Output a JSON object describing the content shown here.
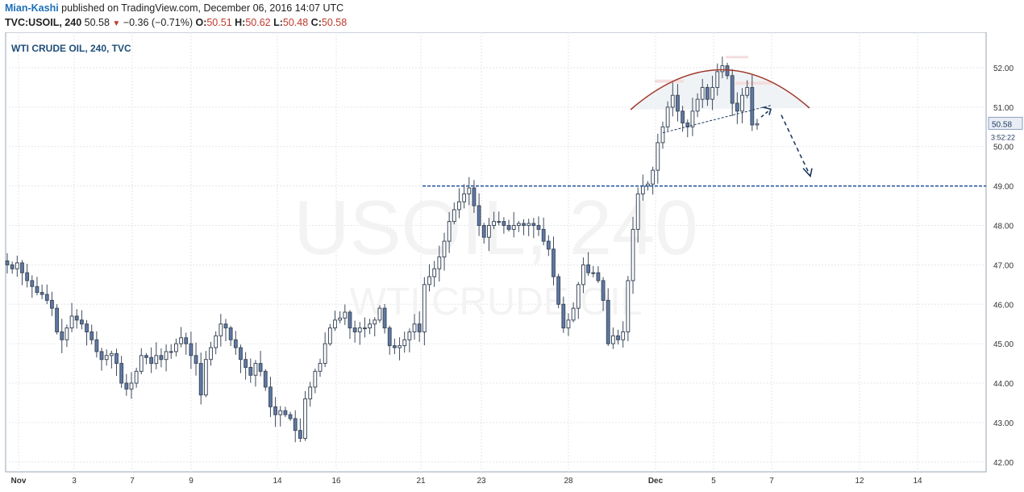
{
  "header": {
    "author": "Mian-Kashi",
    "published_text": "published on TradingView.com, December 06, 2016 14:07 UTC",
    "symbol": "TVC:USOIL, 240",
    "last": "50.58",
    "change": "−0.36 (−0.71%)",
    "open_label": "O:",
    "open": "50.51",
    "high_label": "H:",
    "high": "50.62",
    "low_label": "L:",
    "low": "50.48",
    "close_label": "C:",
    "close": "50.58"
  },
  "chart_data": {
    "type": "candlestick",
    "title": "WTI CRUDE OIL, 240, TVC",
    "watermark": "USOIL, 240",
    "watermark_sub": "WTI CRUDE OIL",
    "ylim": [
      41.75,
      52.9
    ],
    "y_ticks": [
      "52.00",
      "51.00",
      "50.00",
      "49.00",
      "48.00",
      "47.00",
      "46.00",
      "45.00",
      "44.00",
      "43.00",
      "42.00"
    ],
    "x_ticks": [
      "Nov",
      "3",
      "7",
      "9",
      "14",
      "16",
      "21",
      "23",
      "28",
      "Dec",
      "5",
      "7",
      "12",
      "14"
    ],
    "last_price_label": "50.58",
    "countdown_label": "3:52:22",
    "support_level": 49.0,
    "close_path": [
      47.0,
      46.9,
      47.05,
      46.8,
      46.6,
      46.45,
      46.3,
      46.25,
      46.1,
      45.9,
      45.3,
      45.1,
      45.4,
      45.7,
      45.6,
      45.5,
      45.3,
      45.1,
      44.8,
      44.6,
      44.7,
      44.75,
      44.5,
      44.0,
      43.85,
      44.0,
      44.3,
      44.7,
      44.65,
      44.5,
      44.7,
      44.6,
      44.8,
      44.8,
      45.0,
      45.15,
      45.0,
      44.7,
      44.5,
      43.7,
      44.6,
      44.9,
      45.2,
      45.5,
      45.4,
      45.1,
      44.9,
      44.6,
      44.4,
      44.2,
      44.5,
      44.3,
      43.9,
      43.4,
      43.2,
      43.3,
      43.2,
      43.1,
      42.8,
      42.6,
      43.6,
      43.9,
      44.3,
      44.5,
      45.0,
      45.4,
      45.6,
      45.65,
      45.8,
      45.4,
      45.3,
      45.4,
      45.4,
      45.5,
      45.6,
      45.9,
      45.4,
      44.95,
      44.9,
      44.95,
      45.1,
      45.3,
      45.5,
      45.3,
      46.5,
      46.7,
      46.9,
      47.2,
      47.6,
      48.1,
      48.4,
      48.6,
      48.8,
      48.95,
      48.5,
      48.0,
      47.7,
      48.0,
      48.1,
      48.1,
      48.0,
      47.9,
      48.0,
      48.05,
      48.0,
      48.05,
      48.0,
      47.9,
      47.6,
      47.4,
      46.7,
      46.0,
      45.4,
      45.6,
      45.9,
      46.5,
      47.0,
      46.8,
      46.8,
      46.6,
      46.1,
      45.0,
      45.2,
      45.1,
      45.3,
      46.6,
      47.9,
      48.8,
      49.0,
      49.05,
      49.4,
      50.1,
      50.5,
      51.0,
      51.3,
      50.9,
      50.6,
      50.5,
      50.9,
      51.2,
      51.5,
      51.2,
      51.5,
      51.9,
      52.05,
      51.8,
      51.1,
      50.9,
      51.3,
      51.5,
      50.55,
      50.58
    ],
    "annotations": [
      {
        "type": "arc",
        "label": "rounding top"
      },
      {
        "type": "trendline",
        "style": "dashed"
      },
      {
        "type": "arrow",
        "label": "projected move to 49.00"
      }
    ]
  }
}
